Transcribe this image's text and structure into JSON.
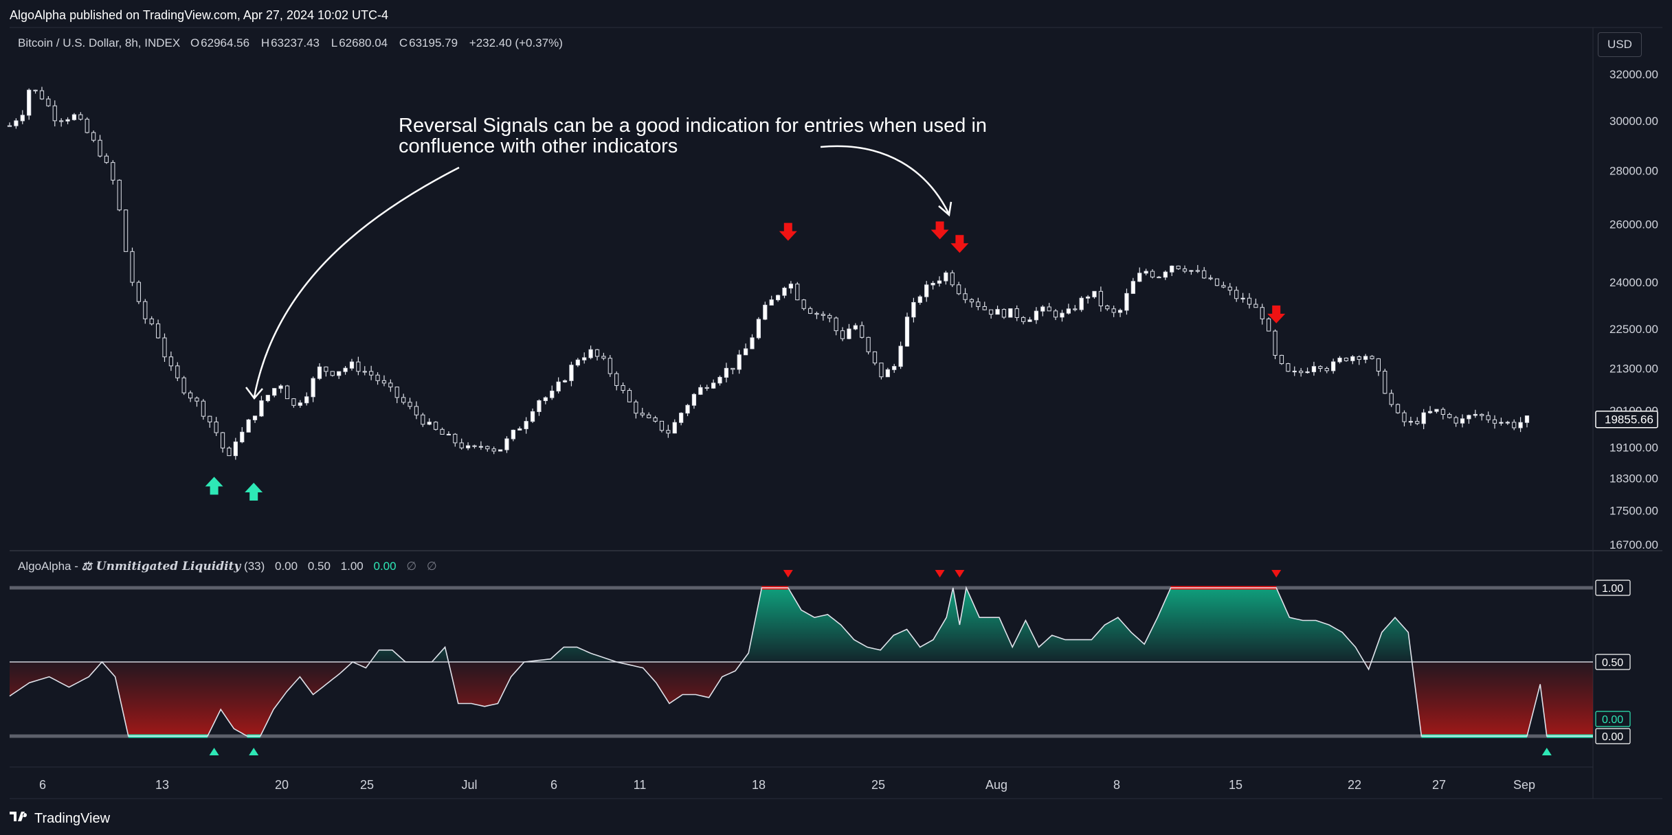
{
  "header": {
    "publisher": "AlgoAlpha published on TradingView.com, Apr 27, 2024 10:02 UTC-4"
  },
  "legend": {
    "symbol": "Bitcoin / U.S. Dollar, 8h, INDEX",
    "open_label": "O",
    "open": "62964.56",
    "high_label": "H",
    "high": "63237.43",
    "low_label": "L",
    "low": "62680.04",
    "close_label": "C",
    "close": "63195.79",
    "change": "+232.40 (+0.37%)"
  },
  "currency_button": "USD",
  "annotation": {
    "line1": "Reversal Signals can be a good indication for entries when used in",
    "line2": "confluence with other indicators"
  },
  "indicator": {
    "author": "AlgoAlpha -",
    "name": "⚖ Unmitigated Liquidity",
    "length": "(33)",
    "v1": "0.00",
    "v2": "0.50",
    "v3": "1.00",
    "v4": "0.00",
    "na1": "∅",
    "na2": "∅"
  },
  "footer": {
    "brand": "TradingView"
  },
  "colors": {
    "bg": "#131722",
    "bull": "#2ee8b6",
    "bear": "#f01313",
    "up_fill": "#0f9f7c",
    "down_fill": "#8e1616"
  },
  "chart_data": [
    {
      "type": "candlestick",
      "title": "Bitcoin / U.S. Dollar, 8h, INDEX",
      "x_ticks": [
        "6",
        "13",
        "20",
        "25",
        "Jul",
        "6",
        "11",
        "18",
        "25",
        "Aug",
        "8",
        "15",
        "22",
        "27",
        "Sep"
      ],
      "y_ticks": [
        "32000.00",
        "30000.00",
        "28000.00",
        "26000.00",
        "24000.00",
        "22500.00",
        "21300.00",
        "20100.00",
        "19100.00",
        "18300.00",
        "17500.00",
        "16700.00"
      ],
      "ylim": [
        16700,
        32000
      ],
      "last_price": "19855.66",
      "close_path": [
        [
          0,
          29800
        ],
        [
          2,
          30400
        ],
        [
          3,
          31400
        ],
        [
          5,
          31000
        ],
        [
          7,
          30100
        ],
        [
          10,
          30200
        ],
        [
          12,
          29400
        ],
        [
          14,
          28600
        ],
        [
          16,
          27400
        ],
        [
          18,
          24500
        ],
        [
          20,
          22900
        ],
        [
          22,
          22600
        ],
        [
          24,
          21400
        ],
        [
          26,
          20800
        ],
        [
          28,
          20400
        ],
        [
          30,
          19900
        ],
        [
          32,
          19300
        ],
        [
          33,
          18600
        ],
        [
          34,
          19300
        ],
        [
          35,
          19400
        ],
        [
          37,
          20000
        ],
        [
          39,
          20500
        ],
        [
          41,
          20900
        ],
        [
          43,
          20200
        ],
        [
          45,
          20600
        ],
        [
          47,
          21300
        ],
        [
          49,
          21200
        ],
        [
          52,
          21400
        ],
        [
          55,
          21100
        ],
        [
          58,
          20600
        ],
        [
          61,
          20100
        ],
        [
          64,
          19600
        ],
        [
          67,
          19300
        ],
        [
          70,
          19000
        ],
        [
          72,
          19200
        ],
        [
          74,
          19000
        ],
        [
          76,
          19400
        ],
        [
          78,
          19800
        ],
        [
          80,
          20400
        ],
        [
          82,
          20500
        ],
        [
          84,
          21000
        ],
        [
          86,
          21600
        ],
        [
          88,
          21800
        ],
        [
          90,
          21500
        ],
        [
          92,
          20900
        ],
        [
          94,
          20300
        ],
        [
          96,
          19900
        ],
        [
          98,
          19700
        ],
        [
          100,
          19500
        ],
        [
          102,
          20100
        ],
        [
          104,
          20600
        ],
        [
          106,
          20900
        ],
        [
          108,
          21200
        ],
        [
          110,
          21400
        ],
        [
          112,
          22000
        ],
        [
          114,
          23000
        ],
        [
          116,
          23500
        ],
        [
          118,
          24100
        ],
        [
          120,
          23300
        ],
        [
          122,
          23000
        ],
        [
          124,
          22900
        ],
        [
          126,
          22200
        ],
        [
          128,
          22700
        ],
        [
          130,
          21800
        ],
        [
          132,
          21100
        ],
        [
          134,
          21300
        ],
        [
          136,
          22800
        ],
        [
          138,
          23600
        ],
        [
          140,
          24000
        ],
        [
          142,
          24300
        ],
        [
          144,
          23700
        ],
        [
          146,
          23400
        ],
        [
          148,
          23100
        ],
        [
          150,
          23000
        ],
        [
          152,
          23000
        ],
        [
          154,
          22800
        ],
        [
          156,
          23100
        ],
        [
          158,
          23000
        ],
        [
          160,
          22900
        ],
        [
          162,
          23300
        ],
        [
          164,
          23700
        ],
        [
          166,
          23100
        ],
        [
          168,
          22900
        ],
        [
          170,
          23900
        ],
        [
          172,
          24400
        ],
        [
          174,
          24200
        ],
        [
          176,
          24600
        ],
        [
          178,
          24500
        ],
        [
          180,
          24300
        ],
        [
          182,
          24000
        ],
        [
          184,
          23800
        ],
        [
          186,
          23500
        ],
        [
          188,
          23300
        ],
        [
          190,
          22900
        ],
        [
          192,
          21500
        ],
        [
          194,
          21100
        ],
        [
          196,
          21200
        ],
        [
          198,
          21500
        ],
        [
          200,
          21300
        ],
        [
          202,
          21600
        ],
        [
          204,
          21700
        ],
        [
          206,
          21700
        ],
        [
          208,
          20900
        ],
        [
          210,
          20000
        ],
        [
          212,
          19700
        ],
        [
          214,
          19900
        ],
        [
          216,
          20100
        ],
        [
          218,
          19900
        ],
        [
          220,
          19800
        ],
        [
          222,
          20000
        ],
        [
          224,
          19900
        ],
        [
          226,
          19800
        ],
        [
          228,
          19700
        ],
        [
          230,
          19850
        ]
      ],
      "bull_signals": [
        31,
        37
      ],
      "bear_signals": [
        118,
        141,
        144,
        192
      ]
    },
    {
      "type": "area",
      "title": "⚖ Unmitigated Liquidity",
      "y_ticks": [
        "1.00",
        "0.50",
        "0.00"
      ],
      "ylim": [
        0,
        1
      ],
      "midline": 0.5,
      "series_path": [
        [
          0,
          0.27
        ],
        [
          3,
          0.36
        ],
        [
          6,
          0.4
        ],
        [
          9,
          0.33
        ],
        [
          12,
          0.4
        ],
        [
          14,
          0.5
        ],
        [
          16,
          0.4
        ],
        [
          18,
          0.0
        ],
        [
          30,
          0.0
        ],
        [
          32,
          0.18
        ],
        [
          34,
          0.05
        ],
        [
          36,
          0.0
        ],
        [
          38,
          0.0
        ],
        [
          40,
          0.18
        ],
        [
          42,
          0.3
        ],
        [
          44,
          0.4
        ],
        [
          46,
          0.28
        ],
        [
          48,
          0.35
        ],
        [
          50,
          0.42
        ],
        [
          52,
          0.5
        ],
        [
          54,
          0.46
        ],
        [
          56,
          0.58
        ],
        [
          58,
          0.58
        ],
        [
          60,
          0.5
        ],
        [
          64,
          0.5
        ],
        [
          66,
          0.6
        ],
        [
          68,
          0.22
        ],
        [
          70,
          0.22
        ],
        [
          72,
          0.2
        ],
        [
          74,
          0.22
        ],
        [
          76,
          0.4
        ],
        [
          78,
          0.5
        ],
        [
          82,
          0.52
        ],
        [
          84,
          0.6
        ],
        [
          86,
          0.6
        ],
        [
          88,
          0.56
        ],
        [
          92,
          0.5
        ],
        [
          96,
          0.46
        ],
        [
          98,
          0.36
        ],
        [
          100,
          0.22
        ],
        [
          102,
          0.28
        ],
        [
          104,
          0.28
        ],
        [
          106,
          0.26
        ],
        [
          108,
          0.4
        ],
        [
          110,
          0.44
        ],
        [
          112,
          0.56
        ],
        [
          114,
          1.0
        ],
        [
          118,
          1.0
        ],
        [
          120,
          0.85
        ],
        [
          122,
          0.8
        ],
        [
          124,
          0.82
        ],
        [
          126,
          0.75
        ],
        [
          128,
          0.65
        ],
        [
          130,
          0.6
        ],
        [
          132,
          0.58
        ],
        [
          134,
          0.68
        ],
        [
          136,
          0.72
        ],
        [
          138,
          0.6
        ],
        [
          140,
          0.65
        ],
        [
          142,
          0.8
        ],
        [
          143,
          1.0
        ],
        [
          144,
          0.75
        ],
        [
          145,
          1.0
        ],
        [
          147,
          0.8
        ],
        [
          150,
          0.8
        ],
        [
          152,
          0.6
        ],
        [
          154,
          0.78
        ],
        [
          156,
          0.6
        ],
        [
          158,
          0.68
        ],
        [
          160,
          0.65
        ],
        [
          162,
          0.65
        ],
        [
          164,
          0.65
        ],
        [
          166,
          0.75
        ],
        [
          168,
          0.8
        ],
        [
          170,
          0.7
        ],
        [
          172,
          0.62
        ],
        [
          174,
          0.8
        ],
        [
          176,
          1.0
        ],
        [
          192,
          1.0
        ],
        [
          194,
          0.8
        ],
        [
          196,
          0.78
        ],
        [
          198,
          0.78
        ],
        [
          200,
          0.75
        ],
        [
          202,
          0.7
        ],
        [
          204,
          0.6
        ],
        [
          206,
          0.45
        ],
        [
          208,
          0.7
        ],
        [
          210,
          0.8
        ],
        [
          212,
          0.7
        ],
        [
          214,
          0.0
        ],
        [
          230,
          0.0
        ],
        [
          232,
          0.35
        ],
        [
          233,
          0.0
        ],
        [
          240,
          0.0
        ]
      ],
      "bull_signals": [
        31,
        37,
        233
      ],
      "bear_signals": [
        118,
        141,
        144,
        192
      ]
    }
  ]
}
